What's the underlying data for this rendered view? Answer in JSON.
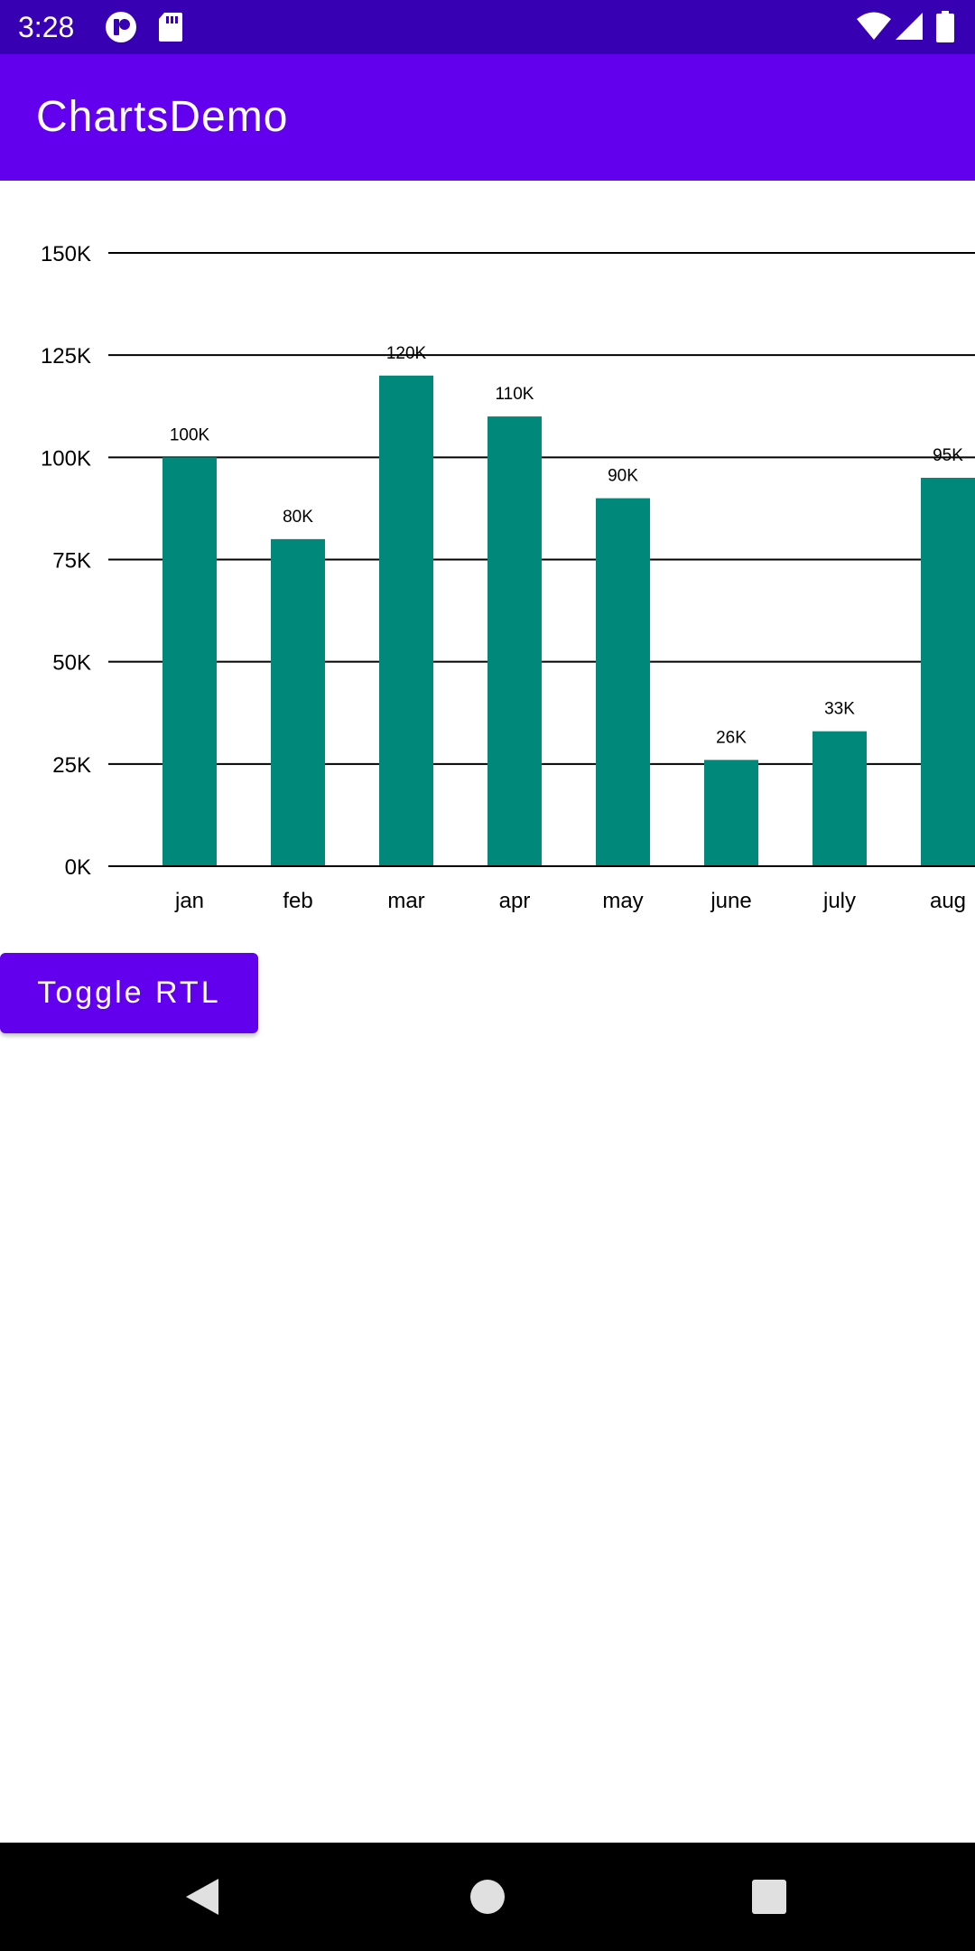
{
  "status_bar": {
    "time": "3:28",
    "icons": [
      "app-notification-icon",
      "sd-card-icon",
      "wifi-icon",
      "cell-signal-icon",
      "battery-icon"
    ],
    "background": "#3700b3"
  },
  "app_bar": {
    "title": "ChartsDemo",
    "background": "#6200ee"
  },
  "chart_data": {
    "type": "bar",
    "categories": [
      "jan",
      "feb",
      "mar",
      "apr",
      "may",
      "june",
      "july",
      "aug"
    ],
    "values": [
      100000,
      80000,
      120000,
      110000,
      90000,
      26000,
      33000,
      95000
    ],
    "value_labels": [
      "100K",
      "80K",
      "120K",
      "110K",
      "90K",
      "26K",
      "33K",
      "95K"
    ],
    "y_ticks": [
      0,
      25000,
      50000,
      75000,
      100000,
      125000,
      150000
    ],
    "y_tick_labels": [
      "0K",
      "25K",
      "50K",
      "75K",
      "100K",
      "125K",
      "150K"
    ],
    "ylim": [
      0,
      150000
    ],
    "grid": true,
    "bar_color": "#00897b"
  },
  "actions": {
    "toggle_label": "Toggle RTL"
  },
  "nav_bar": {
    "icons": [
      "back-icon",
      "home-icon",
      "recents-icon"
    ]
  }
}
